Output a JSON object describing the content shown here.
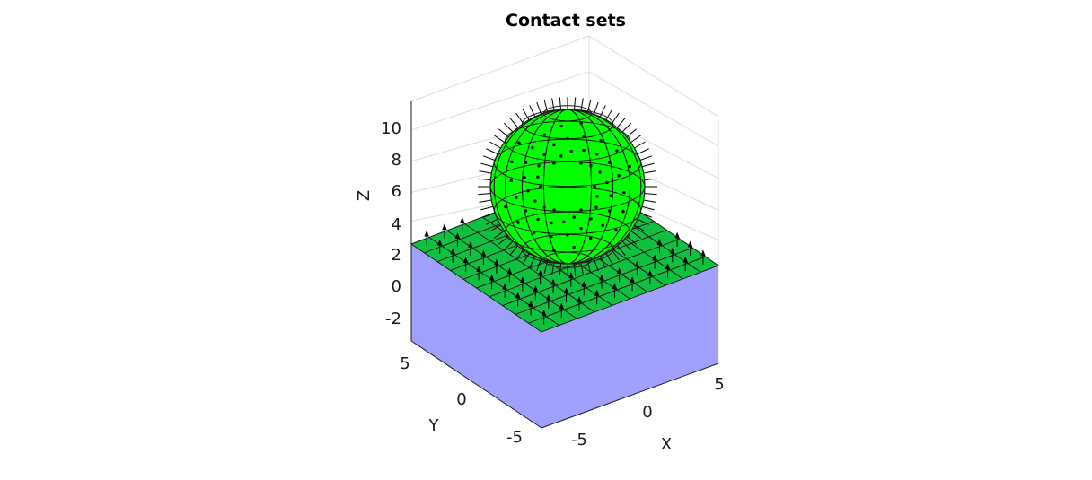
{
  "chart_data": {
    "type": "3d-surface",
    "title": "Contact sets",
    "xlabel": "X",
    "ylabel": "Y",
    "zlabel": "Z",
    "xticks": [
      "-5",
      "0",
      "5"
    ],
    "yticks": [
      "-5",
      "0",
      "5"
    ],
    "zticks": [
      "-2",
      "0",
      "2",
      "4",
      "6",
      "8",
      "10"
    ],
    "xlim": [
      -6,
      6
    ],
    "ylim": [
      -6,
      6
    ],
    "zlim": [
      -3,
      12
    ],
    "grid": true,
    "objects": [
      {
        "name": "block",
        "shape": "box",
        "x": [
          -6,
          6
        ],
        "y": [
          -6,
          6
        ],
        "z": [
          -3,
          3
        ],
        "side_color": "#a0a0ff",
        "contact_face_color": "#00c040"
      },
      {
        "name": "sphere",
        "shape": "sphere",
        "center": [
          0,
          0,
          7
        ],
        "radius": 4,
        "face_color": "#00ff00"
      }
    ],
    "contact_normals": "black arrows on contact faces"
  }
}
